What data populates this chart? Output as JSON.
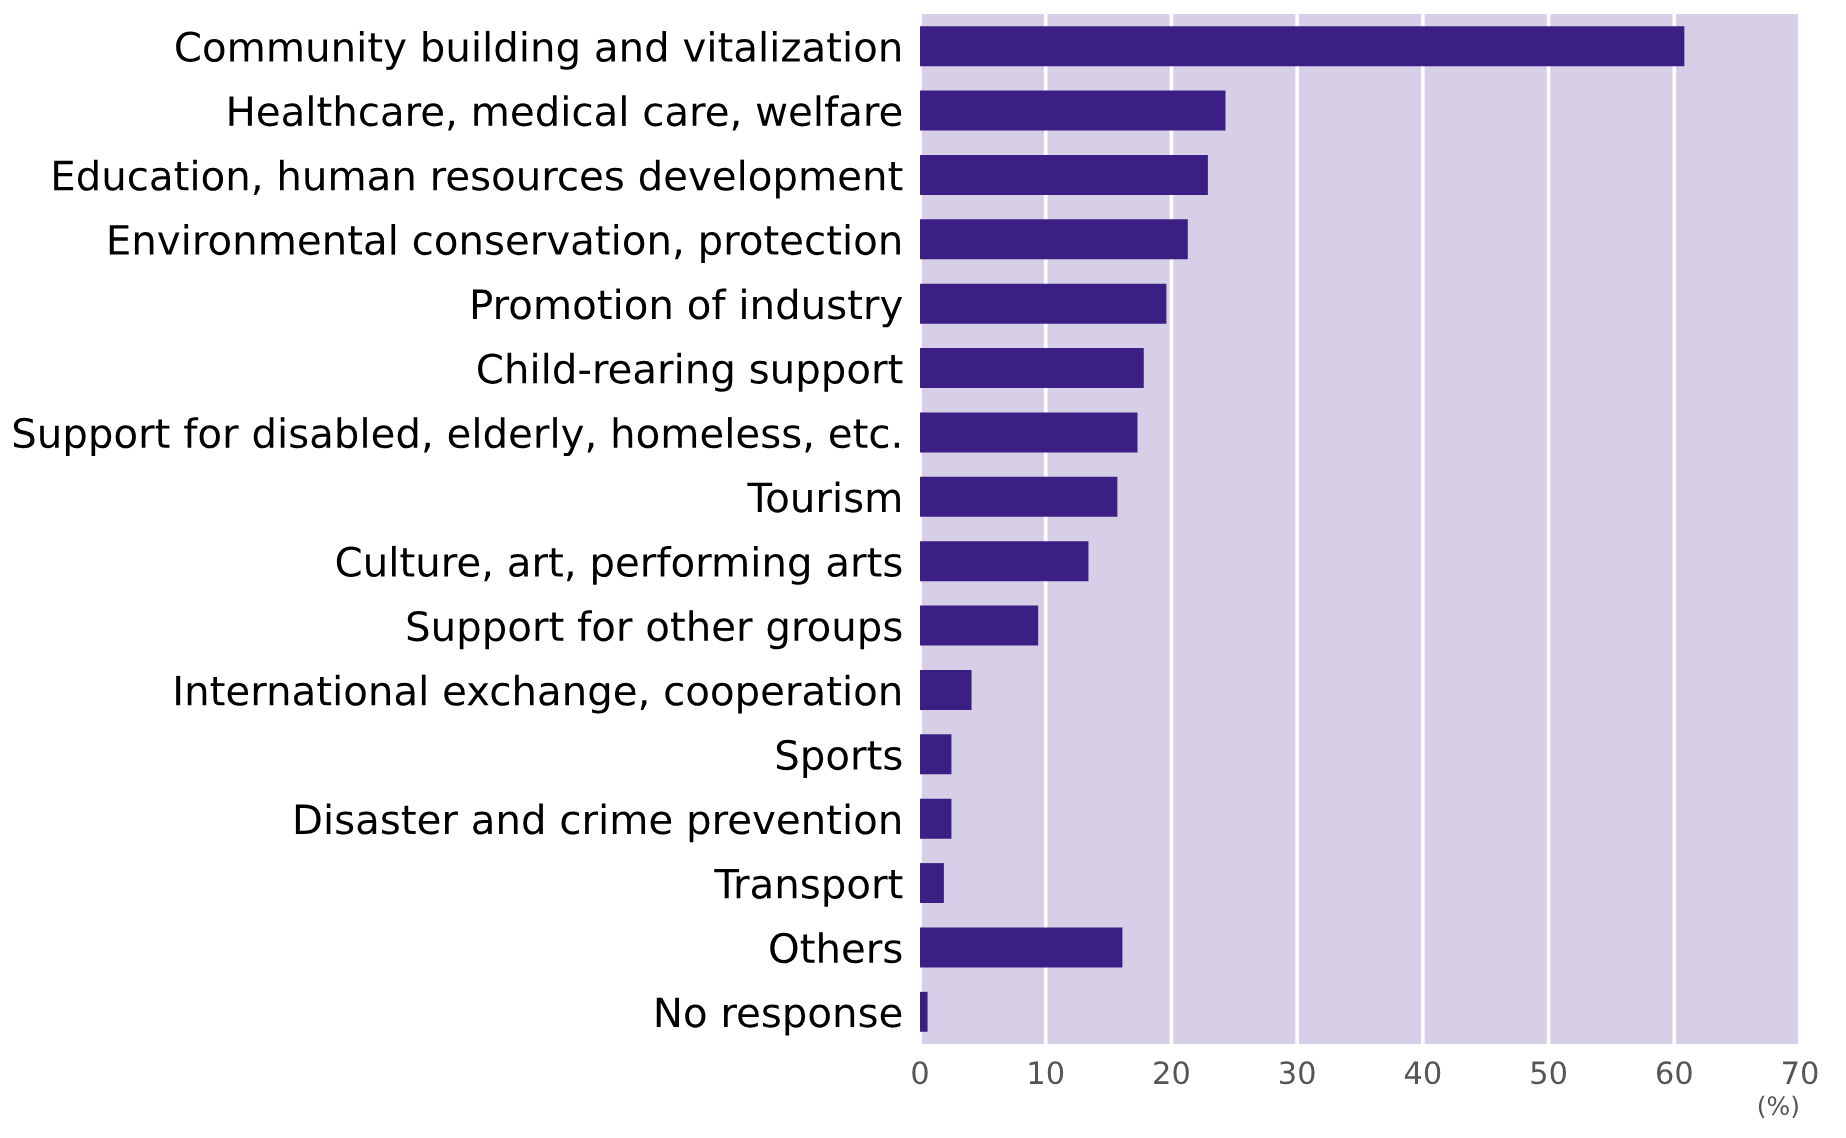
{
  "chart_data": {
    "type": "bar",
    "orientation": "horizontal",
    "xlabel": "(%)",
    "categories": [
      "Community building and vitalization",
      "Healthcare, medical care, welfare",
      "Education, human resources development",
      "Environmental conservation, protection",
      "Promotion of industry",
      "Child-rearing support",
      "Support for disabled, elderly, homeless, etc.",
      "Tourism",
      "Culture, art, performing arts",
      "Support for other groups",
      "International exchange, cooperation",
      "Sports",
      "Disaster and crime prevention",
      "Transport",
      "Others",
      "No response"
    ],
    "values": [
      60.8,
      24.3,
      22.9,
      21.3,
      19.6,
      17.8,
      17.3,
      15.7,
      13.4,
      9.4,
      4.1,
      2.5,
      2.5,
      1.9,
      16.1,
      0.6
    ],
    "color": "#3b1f84",
    "xlim": [
      0,
      70
    ],
    "xticks": [
      0,
      10,
      20,
      30,
      40,
      50,
      60,
      70
    ],
    "grid": "x"
  }
}
